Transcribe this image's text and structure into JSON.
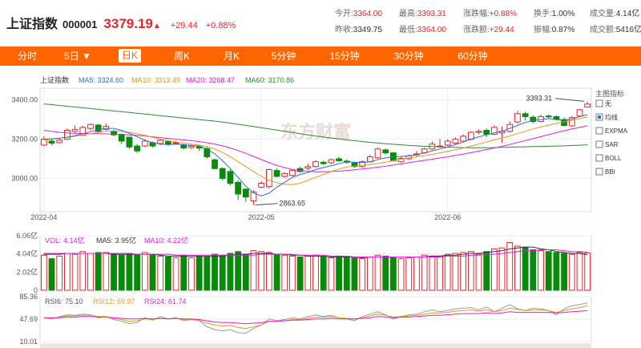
{
  "header": {
    "name": "上证指数",
    "code": "000001",
    "price": "3379.19",
    "change": "+29.44",
    "change_pct": "+0.88%"
  },
  "stats": {
    "row1": [
      {
        "label": "今开:",
        "value": "3364.00",
        "color": "red"
      },
      {
        "label": "最高:",
        "value": "3393.31",
        "color": "red"
      },
      {
        "label": "涨跌幅:",
        "value": "+0.88%",
        "color": "red"
      },
      {
        "label": "换手:",
        "value": "1.00%",
        "color": ""
      },
      {
        "label": "成交量:",
        "value": "4.14亿",
        "color": ""
      }
    ],
    "row2": [
      {
        "label": "昨收:",
        "value": "3349.75",
        "color": ""
      },
      {
        "label": "最低:",
        "value": "3364.00",
        "color": "red"
      },
      {
        "label": "涨跌额:",
        "value": "+29.44",
        "color": "red"
      },
      {
        "label": "振幅:",
        "value": "0.87%",
        "color": ""
      },
      {
        "label": "成交额:",
        "value": "5416亿",
        "color": ""
      }
    ]
  },
  "toolbar": {
    "tabs": [
      "分时",
      "5日 ▼",
      "日K",
      "周K",
      "月K",
      "5分钟",
      "15分钟",
      "30分钟",
      "60分钟"
    ],
    "active": "日K"
  },
  "main_legend": {
    "name": "上证指数",
    "ma5": "MA5: 3324.60",
    "ma10": "MA10: 3313.49",
    "ma20": "MA20: 3268.47",
    "ma60": "MA60: 3170.86"
  },
  "indicators": {
    "title": "主图指标",
    "items": [
      "无",
      "均线",
      "EXPMA",
      "SAR",
      "BOLL",
      "BBI"
    ],
    "checked": "均线"
  },
  "annotations": {
    "high": "3393.31",
    "low": "2863.65"
  },
  "watermark": "东方财富",
  "vol_legend": {
    "vol": "VOL: 4.14亿",
    "ma5": "MA5: 3.95亿",
    "ma10": "MA10: 4.22亿"
  },
  "rsi_legend": {
    "rsi6": "RSI6: 75.10",
    "rsi12": "RSI12: 69.97",
    "rsi24": "RSI24: 61.74"
  },
  "colors": {
    "up": "#e4262c",
    "down": "#0a8a0a",
    "ma5": "#2a6fd6",
    "ma10": "#e39a1c",
    "ma20": "#e01ee0",
    "ma60": "#2e8b2e",
    "brand": "#ff6600"
  },
  "chart_data": [
    {
      "type": "candlestick",
      "title": "上证指数",
      "x_ticks": [
        "2022-04",
        "2022-05",
        "2022-06"
      ],
      "y_ticks": [
        3000.0,
        3200.0,
        3400.0
      ],
      "ylim": [
        2830,
        3460
      ],
      "candles": [
        {
          "o": 3170,
          "c": 3200,
          "h": 3215,
          "l": 3165
        },
        {
          "o": 3190,
          "c": 3180,
          "h": 3200,
          "l": 3170
        },
        {
          "o": 3182,
          "c": 3195,
          "h": 3205,
          "l": 3178
        },
        {
          "o": 3200,
          "c": 3245,
          "h": 3255,
          "l": 3195
        },
        {
          "o": 3240,
          "c": 3250,
          "h": 3270,
          "l": 3232
        },
        {
          "o": 3220,
          "c": 3260,
          "h": 3268,
          "l": 3215
        },
        {
          "o": 3255,
          "c": 3275,
          "h": 3280,
          "l": 3245
        },
        {
          "o": 3272,
          "c": 3240,
          "h": 3278,
          "l": 3230
        },
        {
          "o": 3250,
          "c": 3265,
          "h": 3280,
          "l": 3245
        },
        {
          "o": 3240,
          "c": 3222,
          "h": 3248,
          "l": 3215
        },
        {
          "o": 3222,
          "c": 3190,
          "h": 3228,
          "l": 3175
        },
        {
          "o": 3210,
          "c": 3160,
          "h": 3212,
          "l": 3150
        },
        {
          "o": 3165,
          "c": 3140,
          "h": 3175,
          "l": 3130
        },
        {
          "o": 3165,
          "c": 3190,
          "h": 3200,
          "l": 3160
        },
        {
          "o": 3182,
          "c": 3165,
          "h": 3188,
          "l": 3158
        },
        {
          "o": 3178,
          "c": 3195,
          "h": 3200,
          "l": 3170
        },
        {
          "o": 3188,
          "c": 3175,
          "h": 3192,
          "l": 3166
        },
        {
          "o": 3178,
          "c": 3182,
          "h": 3192,
          "l": 3172
        },
        {
          "o": 3170,
          "c": 3155,
          "h": 3176,
          "l": 3148
        },
        {
          "o": 3158,
          "c": 3165,
          "h": 3172,
          "l": 3150
        },
        {
          "o": 3162,
          "c": 3155,
          "h": 3168,
          "l": 3140
        },
        {
          "o": 3152,
          "c": 3110,
          "h": 3160,
          "l": 3100
        },
        {
          "o": 3095,
          "c": 3050,
          "h": 3100,
          "l": 3045
        },
        {
          "o": 3050,
          "c": 3000,
          "h": 3055,
          "l": 2990
        },
        {
          "o": 3035,
          "c": 2975,
          "h": 3045,
          "l": 2965
        },
        {
          "o": 2980,
          "c": 2920,
          "h": 2990,
          "l": 2890
        },
        {
          "o": 2945,
          "c": 2905,
          "h": 2950,
          "l": 2880
        },
        {
          "o": 2885,
          "c": 2930,
          "h": 2940,
          "l": 2864
        },
        {
          "o": 2955,
          "c": 2975,
          "h": 2985,
          "l": 2950
        },
        {
          "o": 2958,
          "c": 3045,
          "h": 3050,
          "l": 2950
        },
        {
          "o": 3040,
          "c": 3010,
          "h": 3050,
          "l": 3005
        },
        {
          "o": 3010,
          "c": 3025,
          "h": 3030,
          "l": 3002
        },
        {
          "o": 3015,
          "c": 3040,
          "h": 3045,
          "l": 3010
        },
        {
          "o": 3050,
          "c": 3035,
          "h": 3060,
          "l": 3030
        },
        {
          "o": 3052,
          "c": 3060,
          "h": 3075,
          "l": 3042
        },
        {
          "o": 3060,
          "c": 3085,
          "h": 3092,
          "l": 3055
        },
        {
          "o": 3082,
          "c": 3075,
          "h": 3090,
          "l": 3068
        },
        {
          "o": 3080,
          "c": 3095,
          "h": 3102,
          "l": 3072
        },
        {
          "o": 3100,
          "c": 3090,
          "h": 3110,
          "l": 3085
        },
        {
          "o": 3088,
          "c": 3082,
          "h": 3096,
          "l": 3075
        },
        {
          "o": 3078,
          "c": 3060,
          "h": 3084,
          "l": 3055
        },
        {
          "o": 3060,
          "c": 3085,
          "h": 3092,
          "l": 3055
        },
        {
          "o": 3085,
          "c": 3110,
          "h": 3120,
          "l": 3080
        },
        {
          "o": 3105,
          "c": 3150,
          "h": 3158,
          "l": 3100
        },
        {
          "o": 3145,
          "c": 3130,
          "h": 3152,
          "l": 3120
        },
        {
          "o": 3130,
          "c": 3090,
          "h": 3134,
          "l": 3085
        },
        {
          "o": 3085,
          "c": 3102,
          "h": 3110,
          "l": 3080
        },
        {
          "o": 3100,
          "c": 3115,
          "h": 3122,
          "l": 3095
        },
        {
          "o": 3120,
          "c": 3125,
          "h": 3140,
          "l": 3110
        },
        {
          "o": 3130,
          "c": 3150,
          "h": 3158,
          "l": 3125
        },
        {
          "o": 3150,
          "c": 3175,
          "h": 3190,
          "l": 3145
        },
        {
          "o": 3165,
          "c": 3165,
          "h": 3200,
          "l": 3160
        },
        {
          "o": 3170,
          "c": 3190,
          "h": 3200,
          "l": 3165
        },
        {
          "o": 3180,
          "c": 3200,
          "h": 3210,
          "l": 3175
        },
        {
          "o": 3190,
          "c": 3215,
          "h": 3225,
          "l": 3185
        },
        {
          "o": 3200,
          "c": 3235,
          "h": 3240,
          "l": 3195
        },
        {
          "o": 3235,
          "c": 3240,
          "h": 3250,
          "l": 3225
        },
        {
          "o": 3245,
          "c": 3225,
          "h": 3255,
          "l": 3210
        },
        {
          "o": 3225,
          "c": 3260,
          "h": 3270,
          "l": 3220
        },
        {
          "o": 3232,
          "c": 3240,
          "h": 3265,
          "l": 3180
        },
        {
          "o": 3240,
          "c": 3275,
          "h": 3290,
          "l": 3235
        },
        {
          "o": 3288,
          "c": 3330,
          "h": 3345,
          "l": 3280
        },
        {
          "o": 3330,
          "c": 3315,
          "h": 3340,
          "l": 3295
        },
        {
          "o": 3312,
          "c": 3290,
          "h": 3322,
          "l": 3280
        },
        {
          "o": 3290,
          "c": 3315,
          "h": 3325,
          "l": 3285
        },
        {
          "o": 3318,
          "c": 3316,
          "h": 3325,
          "l": 3305
        },
        {
          "o": 3315,
          "c": 3302,
          "h": 3322,
          "l": 3295
        },
        {
          "o": 3300,
          "c": 3270,
          "h": 3310,
          "l": 3265
        },
        {
          "o": 3268,
          "c": 3310,
          "h": 3318,
          "l": 3262
        },
        {
          "o": 3318,
          "c": 3350,
          "h": 3355,
          "l": 3312
        },
        {
          "o": 3364,
          "c": 3379,
          "h": 3393,
          "l": 3364
        }
      ],
      "ma5": [
        3200,
        3202,
        3205,
        3210,
        3218,
        3228,
        3238,
        3248,
        3255,
        3255,
        3245,
        3230,
        3212,
        3195,
        3182,
        3175,
        3172,
        3175,
        3172,
        3168,
        3165,
        3150,
        3125,
        3090,
        3050,
        3005,
        2960,
        2925,
        2910,
        2925,
        2955,
        2980,
        3005,
        3020,
        3030,
        3045,
        3055,
        3065,
        3075,
        3085,
        3082,
        3080,
        3085,
        3095,
        3105,
        3110,
        3112,
        3115,
        3120,
        3130,
        3140,
        3150,
        3160,
        3172,
        3185,
        3200,
        3212,
        3222,
        3232,
        3240,
        3255,
        3270,
        3285,
        3295,
        3300,
        3305,
        3300,
        3295,
        3302,
        3315,
        3325
      ],
      "ma10": [
        3195,
        3200,
        3205,
        3210,
        3215,
        3222,
        3228,
        3235,
        3240,
        3242,
        3240,
        3235,
        3228,
        3220,
        3210,
        3200,
        3192,
        3185,
        3180,
        3175,
        3170,
        3162,
        3150,
        3132,
        3110,
        3085,
        3060,
        3035,
        3010,
        2990,
        2978,
        2970,
        2968,
        2975,
        2990,
        3005,
        3020,
        3035,
        3048,
        3058,
        3062,
        3066,
        3070,
        3076,
        3082,
        3090,
        3098,
        3104,
        3110,
        3116,
        3122,
        3130,
        3138,
        3146,
        3155,
        3165,
        3175,
        3186,
        3196,
        3206,
        3216,
        3228,
        3240,
        3252,
        3262,
        3272,
        3280,
        3288,
        3296,
        3305,
        3313
      ],
      "ma20": [
        3245,
        3240,
        3235,
        3232,
        3230,
        3229,
        3228,
        3228,
        3227,
        3226,
        3225,
        3222,
        3219,
        3216,
        3212,
        3208,
        3204,
        3200,
        3196,
        3192,
        3188,
        3182,
        3175,
        3166,
        3155,
        3142,
        3128,
        3112,
        3096,
        3080,
        3066,
        3055,
        3046,
        3040,
        3036,
        3034,
        3034,
        3035,
        3037,
        3040,
        3044,
        3048,
        3052,
        3057,
        3062,
        3068,
        3074,
        3080,
        3086,
        3092,
        3098,
        3104,
        3110,
        3117,
        3124,
        3131,
        3139,
        3147,
        3155,
        3164,
        3173,
        3183,
        3193,
        3203,
        3213,
        3223,
        3233,
        3243,
        3252,
        3260,
        3268
      ],
      "ma60": [
        3380,
        3376,
        3372,
        3368,
        3364,
        3360,
        3356,
        3352,
        3348,
        3344,
        3340,
        3336,
        3332,
        3328,
        3324,
        3320,
        3316,
        3312,
        3308,
        3304,
        3300,
        3296,
        3292,
        3287,
        3282,
        3276,
        3270,
        3264,
        3258,
        3252,
        3246,
        3240,
        3234,
        3228,
        3222,
        3216,
        3211,
        3206,
        3201,
        3196,
        3192,
        3188,
        3184,
        3180,
        3177,
        3174,
        3171,
        3168,
        3166,
        3164,
        3162,
        3160,
        3159,
        3158,
        3157,
        3156,
        3156,
        3156,
        3157,
        3158,
        3159,
        3160,
        3161,
        3162,
        3163,
        3164,
        3165,
        3166,
        3168,
        3169,
        3171
      ]
    },
    {
      "type": "bar",
      "title": "VOL",
      "y_ticks": [
        "6.06亿",
        "4.04亿",
        "2.02亿",
        "0"
      ],
      "ylim": [
        0,
        6.06
      ],
      "values": [
        3.9,
        3.5,
        3.8,
        4.1,
        4.0,
        4.3,
        4.1,
        4.2,
        4.2,
        4.0,
        3.9,
        4.1,
        4.0,
        4.2,
        4.0,
        3.8,
        3.7,
        3.6,
        3.9,
        3.6,
        3.8,
        3.7,
        4.0,
        3.9,
        4.1,
        4.3,
        4.0,
        4.4,
        4.3,
        4.2,
        4.0,
        3.9,
        3.8,
        3.7,
        3.8,
        3.9,
        3.7,
        3.6,
        3.8,
        3.7,
        3.6,
        3.5,
        3.7,
        3.9,
        3.8,
        3.7,
        3.5,
        3.6,
        3.7,
        3.9,
        3.8,
        3.8,
        4.0,
        4.1,
        4.2,
        4.3,
        4.0,
        4.3,
        4.6,
        4.7,
        5.3,
        4.9,
        4.8,
        4.5,
        4.4,
        4.3,
        4.2,
        4.1,
        4.0,
        4.2,
        4.14
      ],
      "ma5": [
        4.0,
        4.0,
        4.0,
        4.1,
        4.1,
        4.1,
        4.1,
        4.1,
        4.1,
        4.0,
        4.0,
        4.0,
        4.0,
        4.0,
        4.0,
        3.9,
        3.8,
        3.8,
        3.8,
        3.8,
        3.8,
        3.8,
        3.8,
        3.8,
        3.9,
        4.0,
        4.0,
        4.1,
        4.1,
        4.1,
        4.0,
        4.0,
        3.9,
        3.9,
        3.8,
        3.8,
        3.8,
        3.7,
        3.7,
        3.7,
        3.7,
        3.6,
        3.7,
        3.7,
        3.7,
        3.7,
        3.7,
        3.7,
        3.7,
        3.7,
        3.8,
        3.8,
        3.9,
        3.9,
        4.0,
        4.1,
        4.1,
        4.2,
        4.3,
        4.4,
        4.6,
        4.7,
        4.8,
        4.8,
        4.6,
        4.5,
        4.3,
        4.2,
        4.1,
        4.1,
        3.95
      ],
      "ma10": [
        4.1,
        4.1,
        4.1,
        4.1,
        4.1,
        4.1,
        4.1,
        4.1,
        4.1,
        4.1,
        4.1,
        4.1,
        4.0,
        4.0,
        4.0,
        4.0,
        4.0,
        3.9,
        3.9,
        3.9,
        3.9,
        3.9,
        3.9,
        3.9,
        3.9,
        3.9,
        3.9,
        3.9,
        4.0,
        4.0,
        4.0,
        4.0,
        4.0,
        3.9,
        3.9,
        3.9,
        3.9,
        3.8,
        3.8,
        3.8,
        3.7,
        3.7,
        3.7,
        3.7,
        3.7,
        3.7,
        3.7,
        3.7,
        3.7,
        3.7,
        3.7,
        3.7,
        3.8,
        3.8,
        3.8,
        3.9,
        3.9,
        4.0,
        4.0,
        4.1,
        4.2,
        4.3,
        4.4,
        4.4,
        4.5,
        4.5,
        4.5,
        4.4,
        4.3,
        4.3,
        4.22
      ]
    },
    {
      "type": "line",
      "title": "RSI",
      "y_ticks": [
        85.36,
        47.69,
        10.01
      ],
      "ylim": [
        10.01,
        85.36
      ],
      "rsi6": [
        50,
        48,
        52,
        55,
        54,
        56,
        55,
        50,
        52,
        47,
        44,
        40,
        42,
        50,
        46,
        52,
        48,
        50,
        45,
        47,
        45,
        35,
        30,
        28,
        30,
        25,
        24,
        32,
        38,
        48,
        45,
        47,
        50,
        48,
        52,
        55,
        52,
        54,
        50,
        48,
        45,
        52,
        56,
        60,
        55,
        48,
        52,
        55,
        56,
        60,
        63,
        60,
        62,
        65,
        66,
        67,
        63,
        68,
        60,
        66,
        72,
        65,
        62,
        66,
        65,
        62,
        55,
        65,
        70,
        72,
        75
      ],
      "rsi12": [
        50,
        49,
        51,
        53,
        53,
        54,
        54,
        52,
        52,
        49,
        47,
        44,
        45,
        48,
        47,
        49,
        48,
        49,
        47,
        47,
        46,
        41,
        38,
        36,
        37,
        34,
        32,
        35,
        38,
        44,
        44,
        45,
        47,
        47,
        49,
        51,
        51,
        52,
        50,
        49,
        48,
        50,
        53,
        56,
        54,
        51,
        52,
        53,
        54,
        56,
        58,
        58,
        59,
        61,
        62,
        63,
        61,
        63,
        60,
        62,
        66,
        64,
        62,
        63,
        63,
        62,
        59,
        62,
        65,
        67,
        70
      ],
      "rsi24": [
        50,
        50,
        50,
        51,
        51,
        52,
        52,
        51,
        51,
        50,
        49,
        48,
        48,
        49,
        48,
        49,
        48,
        49,
        48,
        48,
        47,
        45,
        43,
        42,
        42,
        41,
        40,
        41,
        42,
        44,
        44,
        45,
        46,
        46,
        47,
        48,
        48,
        49,
        48,
        48,
        48,
        49,
        50,
        52,
        51,
        50,
        51,
        51,
        52,
        53,
        54,
        54,
        55,
        56,
        57,
        57,
        57,
        58,
        57,
        58,
        60,
        59,
        59,
        59,
        59,
        59,
        58,
        59,
        60,
        61,
        62
      ]
    }
  ]
}
